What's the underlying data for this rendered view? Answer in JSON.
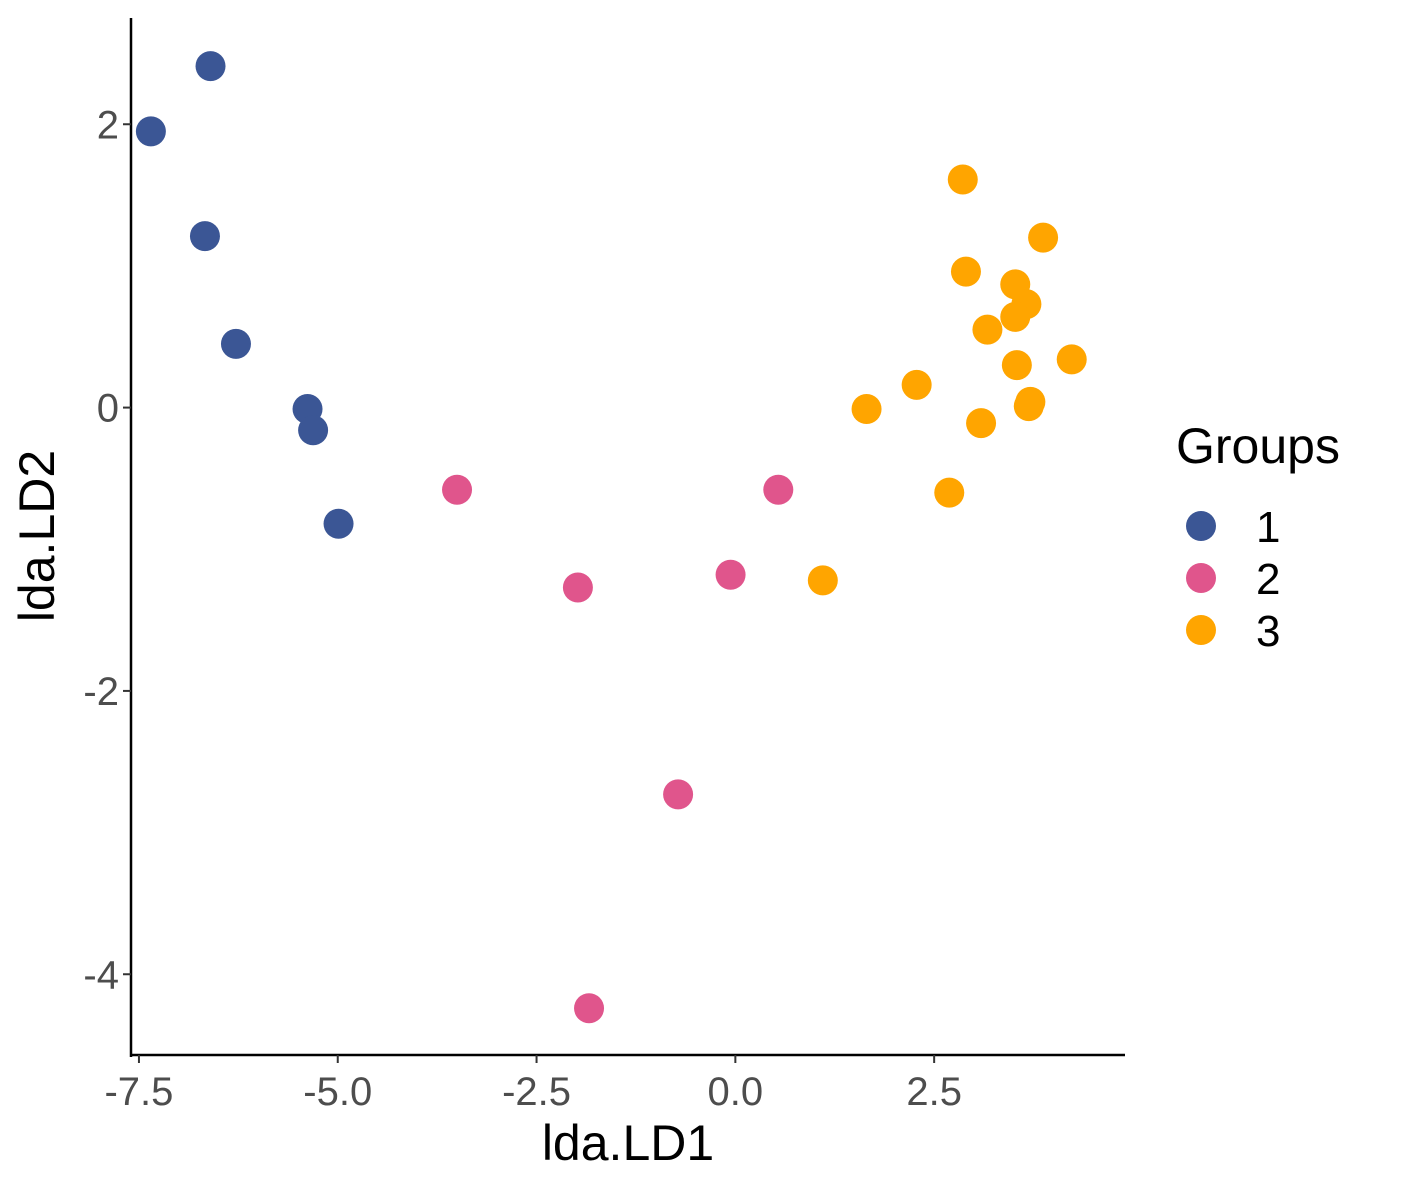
{
  "chart_data": {
    "type": "scatter",
    "title": "",
    "xlabel": "lda.LD1",
    "ylabel": "lda.LD2",
    "xlim": [
      -7.6,
      4.9
    ],
    "ylim": [
      -4.57,
      2.75
    ],
    "x_ticks": [
      -7.5,
      -5.0,
      -2.5,
      0.0,
      2.5
    ],
    "x_tick_labels": [
      "-7.5",
      "-5.0",
      "-2.5",
      "0.0",
      "2.5"
    ],
    "y_ticks": [
      2,
      0,
      -2,
      -4
    ],
    "y_tick_labels": [
      "2",
      "0",
      "-2",
      "-4"
    ],
    "grid": false,
    "legend": {
      "title": "Groups",
      "position": "right"
    },
    "series": [
      {
        "name": "1",
        "color": "#3B5695",
        "points": [
          [
            -6.6,
            2.41
          ],
          [
            -7.35,
            1.95
          ],
          [
            -6.67,
            1.21
          ],
          [
            -6.28,
            0.45
          ],
          [
            -5.38,
            -0.01
          ],
          [
            -5.31,
            -0.16
          ],
          [
            -4.99,
            -0.82
          ]
        ]
      },
      {
        "name": "2",
        "color": "#E0558C",
        "points": [
          [
            -3.5,
            -0.58
          ],
          [
            -1.98,
            -1.27
          ],
          [
            -0.06,
            -1.18
          ],
          [
            0.54,
            -0.58
          ],
          [
            -0.72,
            -2.73
          ],
          [
            -1.84,
            -4.24
          ]
        ]
      },
      {
        "name": "3",
        "color": "#FFA500",
        "points": [
          [
            2.86,
            1.61
          ],
          [
            3.87,
            1.2
          ],
          [
            2.9,
            0.96
          ],
          [
            3.52,
            0.87
          ],
          [
            3.66,
            0.73
          ],
          [
            3.52,
            0.64
          ],
          [
            3.17,
            0.55
          ],
          [
            3.54,
            0.3
          ],
          [
            4.23,
            0.34
          ],
          [
            2.28,
            0.16
          ],
          [
            3.71,
            0.04
          ],
          [
            3.69,
            0.01
          ],
          [
            1.65,
            -0.01
          ],
          [
            3.09,
            -0.11
          ],
          [
            2.69,
            -0.6
          ],
          [
            1.1,
            -1.22
          ]
        ]
      }
    ]
  }
}
